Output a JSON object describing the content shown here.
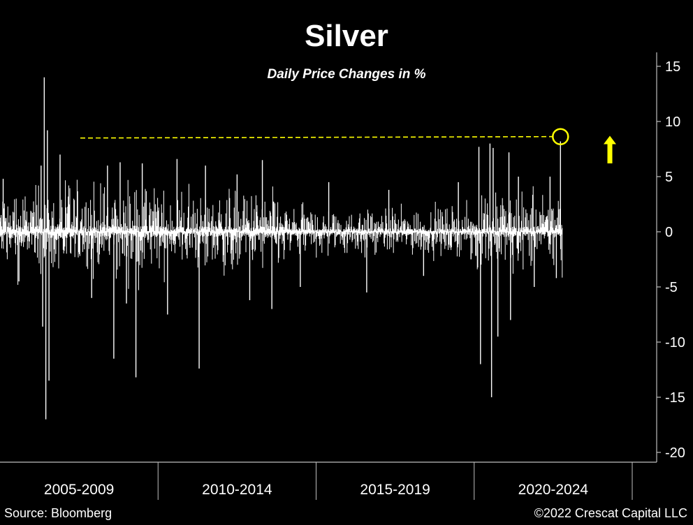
{
  "chart_data": {
    "type": "bar",
    "title": "Silver",
    "subtitle": "Daily Price Changes in %",
    "ylim": [
      -20,
      16
    ],
    "yticks": [
      15,
      10,
      5,
      0,
      -5,
      -10,
      -15,
      -20
    ],
    "ytick_labels": [
      "15",
      "10",
      "5",
      "0",
      "-5",
      "-10",
      "-15",
      "-20"
    ],
    "categories": [
      "2005-2009",
      "2010-2014",
      "2015-2019",
      "2020-2024"
    ],
    "period_starts": [
      2005,
      2010,
      2015,
      2020,
      2025
    ],
    "x_range_years": [
      2005,
      2022.8
    ],
    "grid": false,
    "series": [
      {
        "values_description_note": "",
        "spikes": [
          {
            "year": 2005.1,
            "value": 4.8
          },
          {
            "year": 2005.6,
            "value": -4.5
          },
          {
            "year": 2006.3,
            "value": 6.0
          },
          {
            "year": 2006.35,
            "value": -8.6
          },
          {
            "year": 2006.4,
            "value": 14.0
          },
          {
            "year": 2006.45,
            "value": -17.0
          },
          {
            "year": 2006.5,
            "value": 9.2
          },
          {
            "year": 2006.55,
            "value": -13.5
          },
          {
            "year": 2006.9,
            "value": 7.0
          },
          {
            "year": 2007.9,
            "value": -6.0
          },
          {
            "year": 2008.4,
            "value": 6.0
          },
          {
            "year": 2008.6,
            "value": -11.5
          },
          {
            "year": 2008.8,
            "value": 6.3
          },
          {
            "year": 2009.0,
            "value": -6.5
          },
          {
            "year": 2009.3,
            "value": -13.2
          },
          {
            "year": 2009.5,
            "value": 6.2
          },
          {
            "year": 2010.3,
            "value": -7.5
          },
          {
            "year": 2010.6,
            "value": 6.6
          },
          {
            "year": 2011.3,
            "value": -12.4
          },
          {
            "year": 2011.5,
            "value": 6.0
          },
          {
            "year": 2012.5,
            "value": 5.2
          },
          {
            "year": 2012.9,
            "value": -6.2
          },
          {
            "year": 2013.3,
            "value": 6.5
          },
          {
            "year": 2013.6,
            "value": -7.0
          },
          {
            "year": 2014.5,
            "value": -5.0
          },
          {
            "year": 2015.4,
            "value": 4.5
          },
          {
            "year": 2016.6,
            "value": -5.5
          },
          {
            "year": 2017.3,
            "value": 3.8
          },
          {
            "year": 2018.4,
            "value": -4.0
          },
          {
            "year": 2019.5,
            "value": 4.5
          },
          {
            "year": 2019.9,
            "value": -2.5
          },
          {
            "year": 2020.15,
            "value": 7.7
          },
          {
            "year": 2020.2,
            "value": -12.0
          },
          {
            "year": 2020.5,
            "value": 8.0
          },
          {
            "year": 2020.55,
            "value": -15.0
          },
          {
            "year": 2020.6,
            "value": 7.6
          },
          {
            "year": 2020.75,
            "value": -9.5
          },
          {
            "year": 2021.1,
            "value": 7.2
          },
          {
            "year": 2021.15,
            "value": -8.0
          },
          {
            "year": 2021.4,
            "value": 5.0
          },
          {
            "year": 2021.9,
            "value": -5.0
          },
          {
            "year": 2022.4,
            "value": 5.0
          },
          {
            "year": 2022.6,
            "value": -4.2
          },
          {
            "year": 2022.73,
            "value": 8.2
          }
        ]
      }
    ],
    "annotations": {
      "reference_value": 8.5,
      "reference_color": "#ffff00",
      "highlight_year": 2022.73,
      "arrow_direction": "up"
    }
  },
  "footer": {
    "source": "Source: Bloomberg",
    "copyright": "©2022 Crescat Capital LLC"
  },
  "colors": {
    "background": "#000000",
    "series": "#ffffff",
    "accent": "#ffff00",
    "axis": "#bfbfbf"
  }
}
